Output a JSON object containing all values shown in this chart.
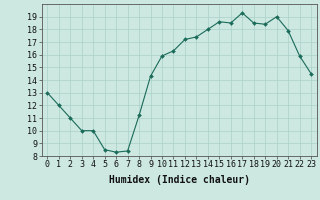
{
  "x": [
    0,
    1,
    2,
    3,
    4,
    5,
    6,
    7,
    8,
    9,
    10,
    11,
    12,
    13,
    14,
    15,
    16,
    17,
    18,
    19,
    20,
    21,
    22,
    23
  ],
  "y": [
    13,
    12,
    11,
    10,
    10,
    8.5,
    8.3,
    8.4,
    11.2,
    14.3,
    15.9,
    16.3,
    17.2,
    17.4,
    18.0,
    18.6,
    18.5,
    19.3,
    18.5,
    18.4,
    19.0,
    17.9,
    15.9,
    14.5
  ],
  "line_color": "#1a6b5a",
  "marker_color": "#1a6b5a",
  "bg_color": "#cce8e0",
  "grid_color": "#aad0c8",
  "xlabel": "Humidex (Indice chaleur)",
  "ylim": [
    8,
    20
  ],
  "xlim": [
    -0.5,
    23.5
  ],
  "yticks": [
    8,
    9,
    10,
    11,
    12,
    13,
    14,
    15,
    16,
    17,
    18,
    19
  ],
  "xticks": [
    0,
    1,
    2,
    3,
    4,
    5,
    6,
    7,
    8,
    9,
    10,
    11,
    12,
    13,
    14,
    15,
    16,
    17,
    18,
    19,
    20,
    21,
    22,
    23
  ],
  "tick_label_fontsize": 6,
  "xlabel_fontsize": 7
}
